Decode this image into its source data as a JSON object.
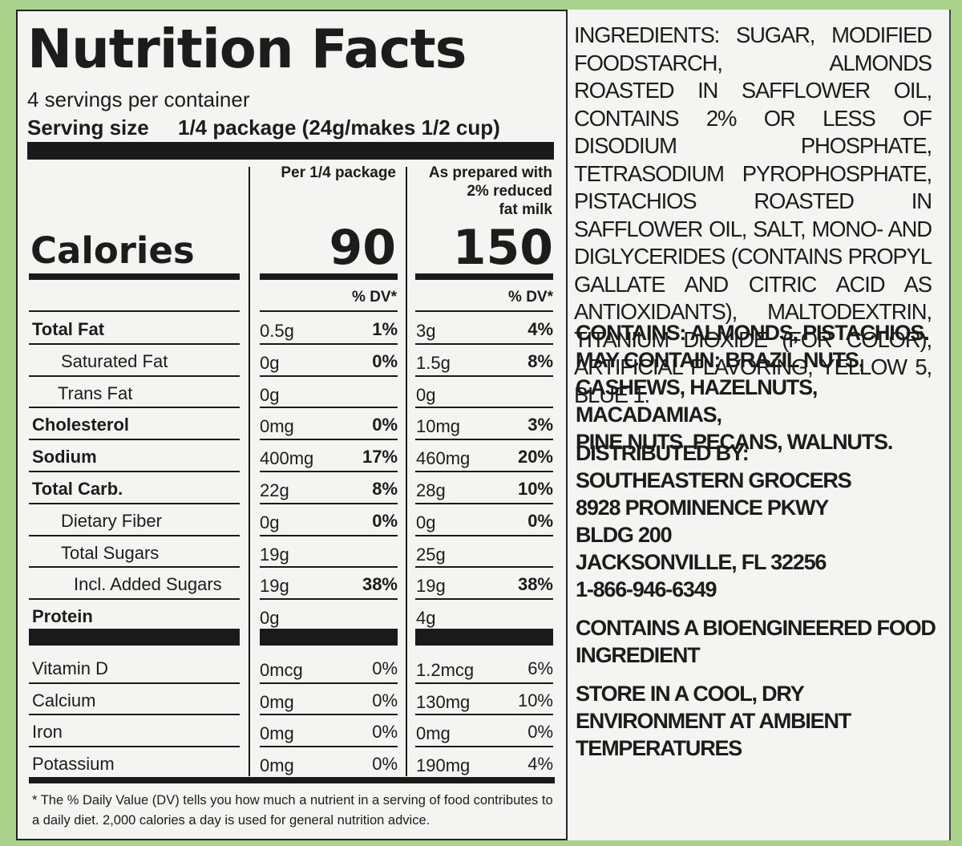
{
  "title": "Nutrition Facts",
  "servings": "4 servings per container",
  "serving_size_label": "Serving size",
  "serving_size_value": "1/4 package (24g/makes 1/2 cup)",
  "col1_header": "Per 1/4 package",
  "col2_header": [
    "As prepared with",
    "2% reduced",
    "fat milk"
  ],
  "calories_label": "Calories",
  "calories_col1": "90",
  "calories_col2": "150",
  "dv_header": "% DV*",
  "nutrients": [
    {
      "label": "Total Fat",
      "v1": "0.5g",
      "p1": "1%",
      "v2": "3g",
      "p2": "4%"
    },
    {
      "label": "Saturated Fat",
      "v1": "0g",
      "p1": "0%",
      "v2": "1.5g",
      "p2": "8%"
    },
    {
      "label": "Trans Fat",
      "v1": "0g",
      "p1": "",
      "v2": "0g",
      "p2": ""
    },
    {
      "label": "Cholesterol",
      "v1": "0mg",
      "p1": "0%",
      "v2": "10mg",
      "p2": "3%"
    },
    {
      "label": "Sodium",
      "v1": "400mg",
      "p1": "17%",
      "v2": "460mg",
      "p2": "20%"
    },
    {
      "label": "Total Carb.",
      "v1": "22g",
      "p1": "8%",
      "v2": "28g",
      "p2": "10%"
    },
    {
      "label": "Dietary Fiber",
      "v1": "0g",
      "p1": "0%",
      "v2": "0g",
      "p2": "0%"
    },
    {
      "label": "Total Sugars",
      "v1": "19g",
      "p1": "",
      "v2": "25g",
      "p2": ""
    },
    {
      "label": "Incl. Added Sugars",
      "v1": "19g",
      "p1": "38%",
      "v2": "19g",
      "p2": "38%"
    },
    {
      "label": "Protein",
      "v1": "0g",
      "p1": "",
      "v2": "4g",
      "p2": ""
    }
  ],
  "vitamins": [
    {
      "label": "Vitamin D",
      "v1": "0mcg",
      "p1": "0%",
      "v2": "1.2mcg",
      "p2": "6%"
    },
    {
      "label": "Calcium",
      "v1": "0mg",
      "p1": "0%",
      "v2": "130mg",
      "p2": "10%"
    },
    {
      "label": "Iron",
      "v1": "0mg",
      "p1": "0%",
      "v2": "0mg",
      "p2": "0%"
    },
    {
      "label": "Potassium",
      "v1": "0mg",
      "p1": "0%",
      "v2": "190mg",
      "p2": "4%"
    }
  ],
  "footnote": "* The % Daily Value (DV) tells you how much a nutrient in a serving of food contributes to a daily diet. 2,000 calories a day is used for general nutrition advice.",
  "ingredients": "INGREDIENTS: SUGAR, MODIFIED FOODSTARCH, ALMONDS ROASTED IN SAFFLOWER OIL, CONTAINS 2% OR LESS OF DISODIUM PHOSPHATE, TETRASODIUM PYROPHOSPHATE, PISTACHIOS ROASTED IN SAFFLOWER OIL, SALT, MONO- AND DIGLYCERIDES (CONTAINS PROPYL GALLATE AND CITRIC ACID AS ANTIOXIDANTS), MALTODEXTRIN, TITANIUM DIOXIDE (FOR COLOR), ARTIFICIAL FLAVORING, YELLOW 5, BLUE 1.",
  "allergens": [
    "CONTAINS: ALMONDS, PISTACHIOS.",
    "MAY CONTAIN: BRAZIL NUTS,",
    "CASHEWS, HAZELNUTS, MACADAMIAS,",
    "PINE NUTS, PECANS, WALNUTS."
  ],
  "distributor": [
    "DISTRIBUTED BY:",
    "SOUTHEASTERN GROCERS",
    "8928 PROMINENCE PKWY",
    "BLDG 200",
    "JACKSONVILLE, FL 32256",
    "1-866-946-6349"
  ],
  "bioengineered": [
    "CONTAINS A BIOENGINEERED FOOD",
    "INGREDIENT"
  ],
  "storage": [
    "STORE IN A COOL, DRY",
    "ENVIRONMENT AT AMBIENT",
    "TEMPERATURES"
  ]
}
